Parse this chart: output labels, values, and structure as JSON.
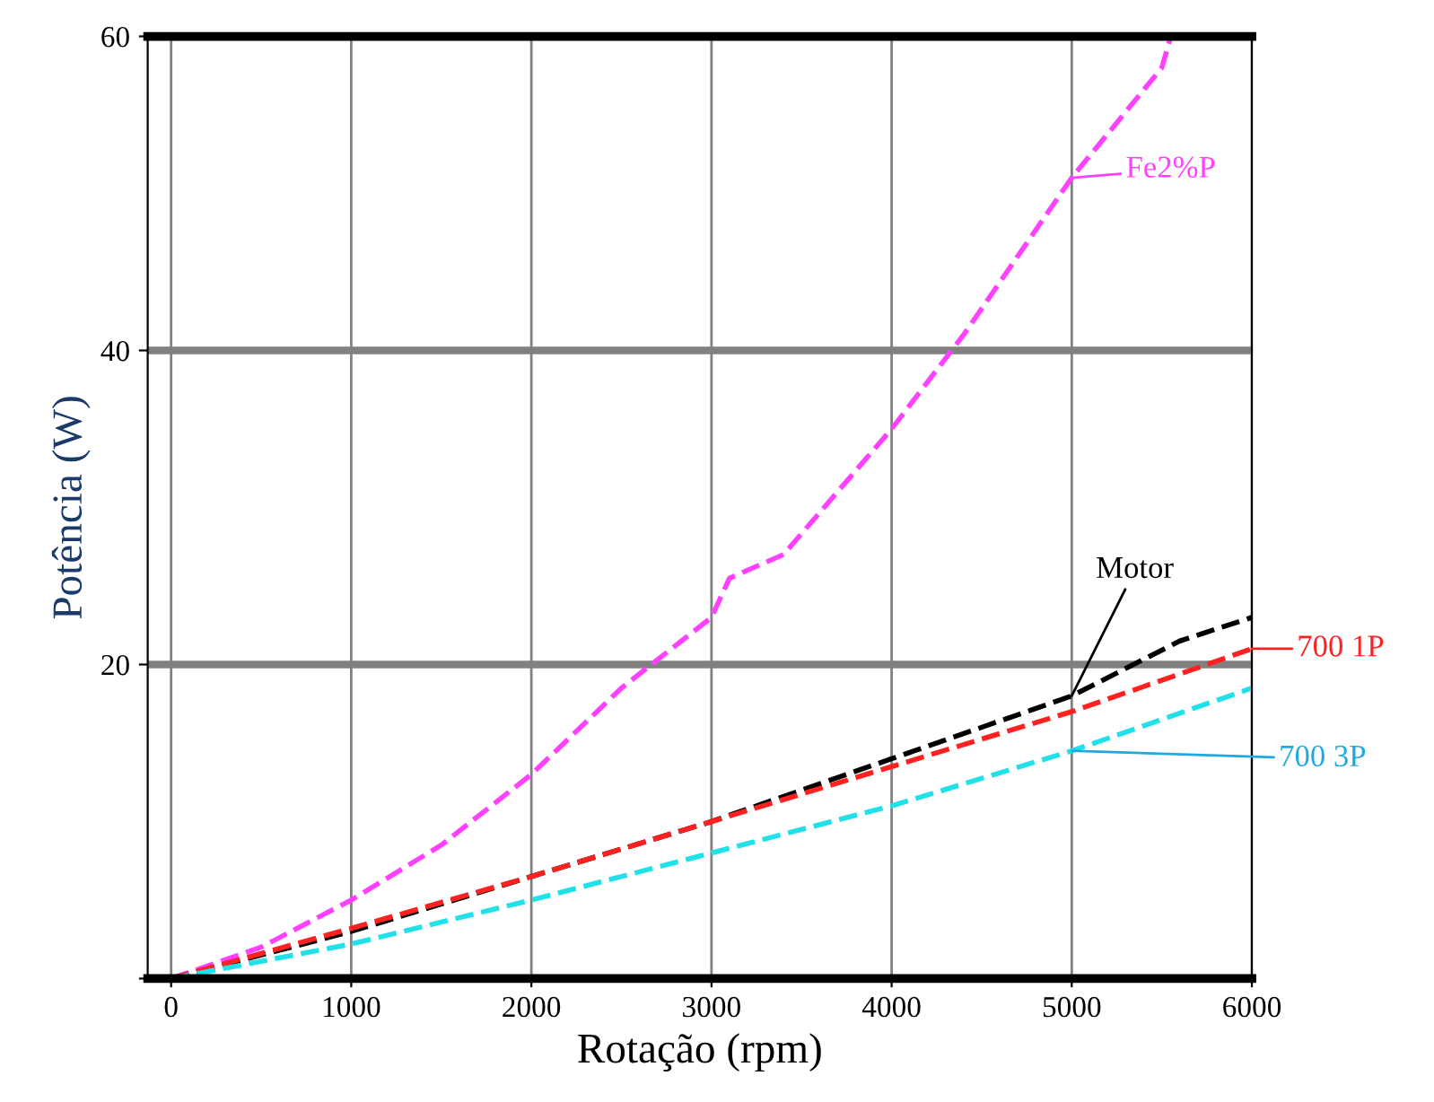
{
  "chart_data": {
    "type": "line",
    "xlabel": "Rotação (rpm)",
    "ylabel": "Potência (W)",
    "xlim": [
      -130,
      6000
    ],
    "ylim": [
      0,
      60
    ],
    "xticks": [
      0,
      1000,
      2000,
      3000,
      4000,
      5000,
      6000
    ],
    "yticks": [
      {
        "value": 0,
        "label": null
      },
      20,
      40,
      60
    ],
    "grid": true,
    "legend": "right",
    "line_style": "dashed",
    "marker": "none",
    "series": [
      {
        "name": "Fe2%P",
        "color": "#ff40ff",
        "x": [
          0,
          500,
          1000,
          1500,
          2000,
          2500,
          3000,
          3100,
          3400,
          4000,
          4400,
          5000,
          5500,
          5550
        ],
        "values": [
          0,
          2,
          5,
          8.5,
          13,
          18.5,
          23,
          25.5,
          27,
          35,
          41,
          51,
          58,
          60
        ]
      },
      {
        "name": "Motor",
        "color": "#000000",
        "x": [
          0,
          1000,
          2000,
          3000,
          4000,
          5000,
          5600,
          6000
        ],
        "values": [
          0,
          3,
          6.5,
          10,
          14,
          18,
          21.5,
          23
        ]
      },
      {
        "name": "700 1P",
        "color": "#ff2020",
        "x": [
          0,
          1000,
          2000,
          3000,
          4000,
          5000,
          6000
        ],
        "values": [
          0,
          3.2,
          6.5,
          10,
          13.5,
          17,
          21
        ]
      },
      {
        "name": "700 3P",
        "color": "#20e0e8",
        "x": [
          0,
          1000,
          2000,
          3000,
          4000,
          5000,
          6000
        ],
        "values": [
          0,
          2.2,
          5,
          8,
          11,
          14.5,
          18.5
        ]
      }
    ]
  }
}
